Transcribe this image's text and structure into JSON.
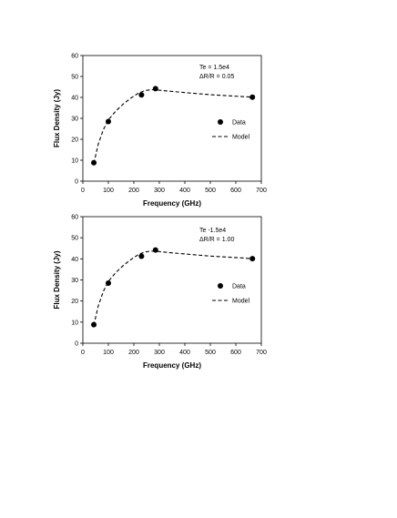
{
  "chart_data": [
    {
      "type": "scatter",
      "title": "",
      "xlabel": "Frequency  (GHz)",
      "ylabel": "Flux Density (Jy)",
      "xlim": [
        0,
        700
      ],
      "ylim": [
        0,
        60
      ],
      "xticks": [
        0,
        100,
        200,
        300,
        400,
        500,
        600,
        700
      ],
      "yticks": [
        0,
        10,
        20,
        30,
        40,
        50,
        60
      ],
      "grid": false,
      "legend_position": "right",
      "annotations": [
        "Te = 1.5e4",
        "ΔR/R = 0.05"
      ],
      "series": [
        {
          "name": "Data",
          "style": "marker",
          "color": "#000000",
          "x": [
            43,
            100,
            230,
            285,
            665
          ],
          "y": [
            8.8,
            28.5,
            41.2,
            44.2,
            40.1
          ]
        },
        {
          "name": "Model",
          "style": "dashed-line",
          "color": "#000000",
          "x": [
            43,
            60,
            80,
            100,
            130,
            160,
            190,
            220,
            245,
            270,
            285,
            320,
            400,
            500,
            600,
            665
          ],
          "y": [
            8.5,
            17.5,
            24.5,
            29.3,
            33.6,
            37.0,
            39.8,
            42.2,
            43.3,
            43.7,
            43.6,
            43.2,
            42.3,
            41.3,
            40.6,
            40.1
          ]
        }
      ]
    },
    {
      "type": "scatter",
      "title": "",
      "xlabel": "Frequency  (GHz)",
      "ylabel": "Flux Density (Jy)",
      "xlim": [
        0,
        700
      ],
      "ylim": [
        0,
        60
      ],
      "xticks": [
        0,
        100,
        200,
        300,
        400,
        500,
        600,
        700
      ],
      "yticks": [
        0,
        10,
        20,
        30,
        40,
        50,
        60
      ],
      "grid": false,
      "legend_position": "right",
      "annotations": [
        "Te -1.5e4",
        "ΔR/R = 1.00"
      ],
      "series": [
        {
          "name": "Data",
          "style": "marker",
          "color": "#000000",
          "x": [
            43,
            100,
            230,
            285,
            665
          ],
          "y": [
            8.8,
            28.5,
            41.2,
            44.2,
            40.1
          ]
        },
        {
          "name": "Model",
          "style": "dashed-line",
          "color": "#000000",
          "x": [
            43,
            60,
            80,
            100,
            130,
            160,
            190,
            220,
            245,
            270,
            285,
            320,
            400,
            500,
            600,
            665
          ],
          "y": [
            8.5,
            17.5,
            24.5,
            29.3,
            33.6,
            37.0,
            39.8,
            42.2,
            43.3,
            43.7,
            43.6,
            43.2,
            42.3,
            41.3,
            40.6,
            40.1
          ]
        }
      ]
    }
  ]
}
